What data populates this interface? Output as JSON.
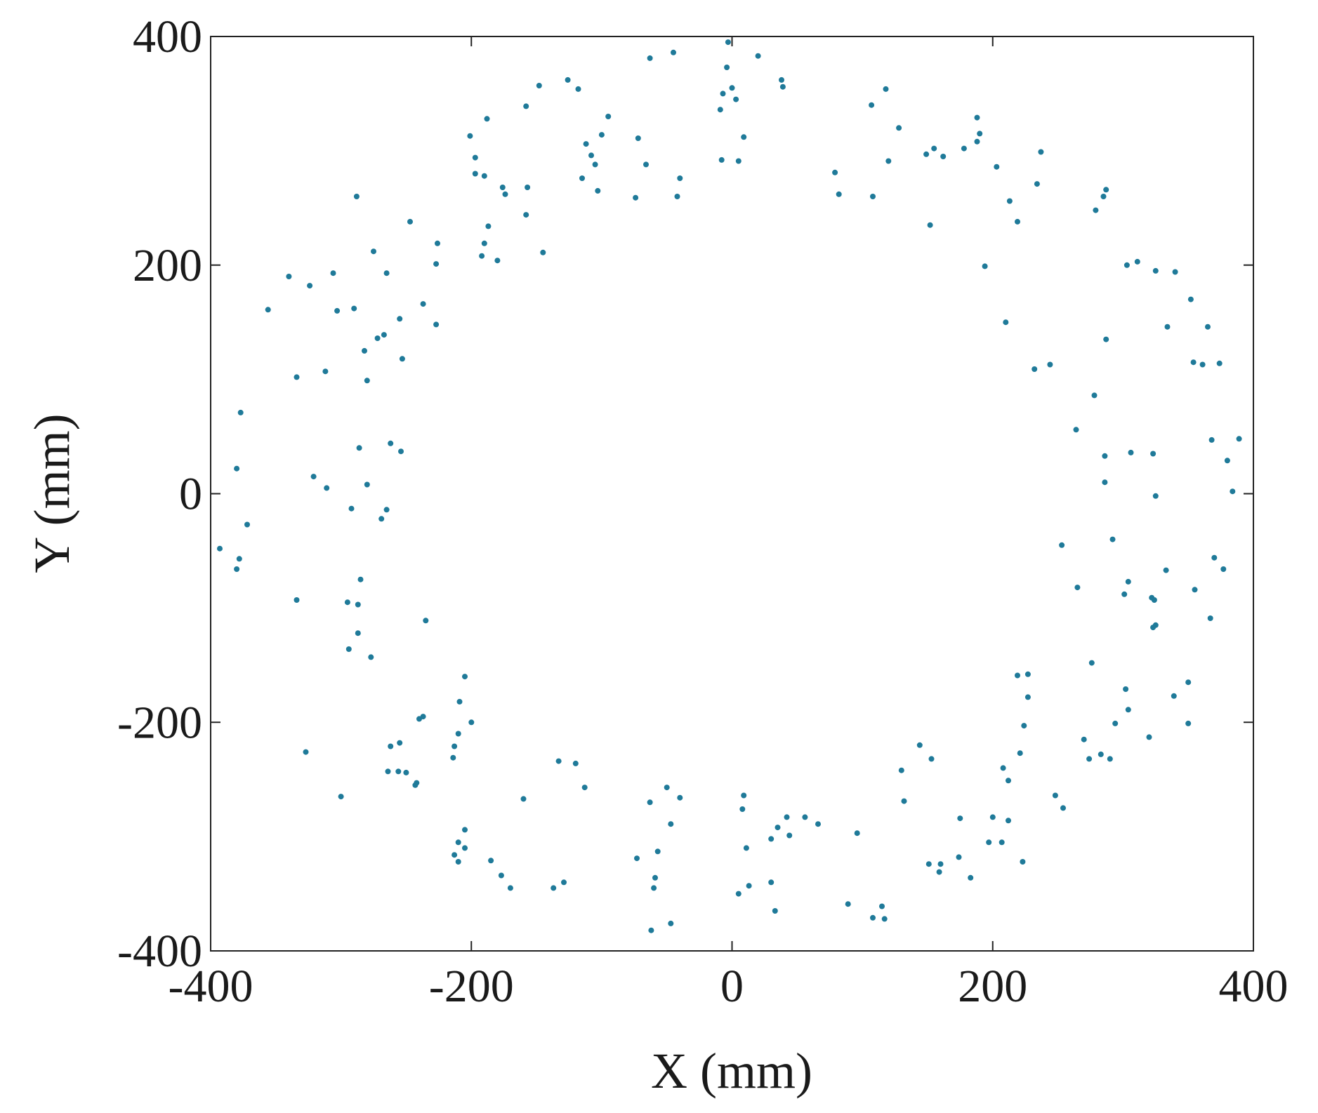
{
  "chart_data": {
    "type": "scatter",
    "title": "",
    "xlabel": "X (mm)",
    "ylabel": "Y (mm)",
    "xlim": [
      -400,
      400
    ],
    "ylim": [
      -400,
      400
    ],
    "xticks": [
      -400,
      -200,
      0,
      200,
      400
    ],
    "yticks": [
      -400,
      -200,
      0,
      200,
      400
    ],
    "xtick_labels": [
      "-400",
      "-200",
      "0",
      "200",
      "400"
    ],
    "ytick_labels": [
      "-400",
      "-200",
      "0",
      "200",
      "400"
    ],
    "grid": false,
    "marker_color": "#1f7a99",
    "series": [
      {
        "points": [
          [
            -3,
            395
          ],
          [
            20,
            383
          ],
          [
            38,
            362
          ],
          [
            39,
            356
          ],
          [
            -45,
            386
          ],
          [
            -63,
            381
          ],
          [
            -126,
            362
          ],
          [
            -118,
            354
          ],
          [
            -148,
            357
          ],
          [
            -158,
            339
          ],
          [
            -188,
            328
          ],
          [
            -201,
            313
          ],
          [
            -197,
            294
          ],
          [
            -190,
            278
          ],
          [
            -197,
            280
          ],
          [
            -176,
            268
          ],
          [
            -174,
            262
          ],
          [
            -157,
            268
          ],
          [
            -145,
            211
          ],
          [
            -158,
            244
          ],
          [
            -187,
            234
          ],
          [
            -190,
            219
          ],
          [
            -192,
            208
          ],
          [
            -180,
            204
          ],
          [
            -95,
            330
          ],
          [
            -100,
            314
          ],
          [
            -112,
            306
          ],
          [
            -108,
            296
          ],
          [
            -105,
            288
          ],
          [
            -115,
            276
          ],
          [
            -103,
            265
          ],
          [
            -72,
            311
          ],
          [
            -66,
            288
          ],
          [
            -74,
            259
          ],
          [
            -40,
            276
          ],
          [
            -42,
            260
          ],
          [
            -7,
            350
          ],
          [
            0,
            355
          ],
          [
            -4,
            373
          ],
          [
            3,
            345
          ],
          [
            -9,
            336
          ],
          [
            9,
            312
          ],
          [
            -8,
            292
          ],
          [
            5,
            291
          ],
          [
            107,
            340
          ],
          [
            118,
            354
          ],
          [
            128,
            320
          ],
          [
            120,
            291
          ],
          [
            155,
            302
          ],
          [
            149,
            297
          ],
          [
            162,
            295
          ],
          [
            178,
            302
          ],
          [
            188,
            329
          ],
          [
            190,
            315
          ],
          [
            188,
            308
          ],
          [
            203,
            286
          ],
          [
            237,
            299
          ],
          [
            213,
            256
          ],
          [
            234,
            271
          ],
          [
            219,
            238
          ],
          [
            152,
            235
          ],
          [
            194,
            199
          ],
          [
            79,
            281
          ],
          [
            82,
            262
          ],
          [
            108,
            260
          ],
          [
            287,
            266
          ],
          [
            285,
            260
          ],
          [
            279,
            248
          ],
          [
            303,
            200
          ],
          [
            311,
            203
          ],
          [
            325,
            195
          ],
          [
            340,
            194
          ],
          [
            352,
            170
          ],
          [
            365,
            146
          ],
          [
            334,
            146
          ],
          [
            287,
            135
          ],
          [
            210,
            150
          ],
          [
            232,
            109
          ],
          [
            244,
            113
          ],
          [
            354,
            115
          ],
          [
            361,
            113
          ],
          [
            374,
            114
          ],
          [
            278,
            86
          ],
          [
            264,
            56
          ],
          [
            286,
            33
          ],
          [
            306,
            36
          ],
          [
            323,
            35
          ],
          [
            368,
            47
          ],
          [
            389,
            48
          ],
          [
            380,
            29
          ],
          [
            384,
            2
          ],
          [
            286,
            10
          ],
          [
            325,
            -2
          ],
          [
            292,
            -40
          ],
          [
            253,
            -45
          ],
          [
            265,
            -82
          ],
          [
            304,
            -77
          ],
          [
            333,
            -67
          ],
          [
            301,
            -88
          ],
          [
            322,
            -91
          ],
          [
            324,
            -93
          ],
          [
            325,
            -115
          ],
          [
            323,
            -117
          ],
          [
            355,
            -84
          ],
          [
            370,
            -56
          ],
          [
            377,
            -66
          ],
          [
            367,
            -109
          ],
          [
            276,
            -148
          ],
          [
            219,
            -159
          ],
          [
            227,
            -158
          ],
          [
            227,
            -178
          ],
          [
            302,
            -171
          ],
          [
            339,
            -177
          ],
          [
            350,
            -165
          ],
          [
            304,
            -189
          ],
          [
            294,
            -201
          ],
          [
            320,
            -213
          ],
          [
            350,
            -201
          ],
          [
            270,
            -215
          ],
          [
            274,
            -232
          ],
          [
            290,
            -232
          ],
          [
            283,
            -228
          ],
          [
            224,
            -203
          ],
          [
            221,
            -227
          ],
          [
            208,
            -240
          ],
          [
            212,
            -251
          ],
          [
            248,
            -264
          ],
          [
            254,
            -275
          ],
          [
            200,
            -283
          ],
          [
            212,
            -286
          ],
          [
            175,
            -284
          ],
          [
            197,
            -305
          ],
          [
            207,
            -305
          ],
          [
            223,
            -322
          ],
          [
            183,
            -336
          ],
          [
            159,
            -331
          ],
          [
            160,
            -324
          ],
          [
            174,
            -318
          ],
          [
            151,
            -324
          ],
          [
            144,
            -220
          ],
          [
            153,
            -232
          ],
          [
            130,
            -242
          ],
          [
            132,
            -269
          ],
          [
            115,
            -361
          ],
          [
            117,
            -372
          ],
          [
            108,
            -371
          ],
          [
            89,
            -359
          ],
          [
            96,
            -297
          ],
          [
            66,
            -289
          ],
          [
            56,
            -283
          ],
          [
            42,
            -283
          ],
          [
            35,
            -292
          ],
          [
            30,
            -302
          ],
          [
            44,
            -299
          ],
          [
            30,
            -340
          ],
          [
            33,
            -365
          ],
          [
            9,
            -264
          ],
          [
            8,
            -276
          ],
          [
            11,
            -310
          ],
          [
            13,
            -343
          ],
          [
            5,
            -350
          ],
          [
            -50,
            -257
          ],
          [
            -40,
            -266
          ],
          [
            -63,
            -270
          ],
          [
            -47,
            -289
          ],
          [
            -57,
            -313
          ],
          [
            -73,
            -319
          ],
          [
            -59,
            -336
          ],
          [
            -60,
            -345
          ],
          [
            -47,
            -376
          ],
          [
            -62,
            -382
          ],
          [
            -133,
            -234
          ],
          [
            -120,
            -236
          ],
          [
            -113,
            -257
          ],
          [
            -160,
            -267
          ],
          [
            -129,
            -340
          ],
          [
            -137,
            -345
          ],
          [
            -170,
            -345
          ],
          [
            -177,
            -334
          ],
          [
            -185,
            -321
          ],
          [
            -205,
            -294
          ],
          [
            -205,
            -310
          ],
          [
            -213,
            -316
          ],
          [
            -210,
            -322
          ],
          [
            -210,
            -305
          ],
          [
            -205,
            -160
          ],
          [
            -209,
            -182
          ],
          [
            -200,
            -200
          ],
          [
            -210,
            -210
          ],
          [
            -213,
            -221
          ],
          [
            -214,
            -231
          ],
          [
            -237,
            -195
          ],
          [
            -240,
            -197
          ],
          [
            -235,
            -111
          ],
          [
            -255,
            -218
          ],
          [
            -256,
            -243
          ],
          [
            -250,
            -244
          ],
          [
            -242,
            -253
          ],
          [
            -243,
            -255
          ],
          [
            -262,
            -221
          ],
          [
            -264,
            -243
          ],
          [
            -277,
            -143
          ],
          [
            -287,
            -97
          ],
          [
            -285,
            -75
          ],
          [
            -295,
            -95
          ],
          [
            -287,
            -122
          ],
          [
            -294,
            -136
          ],
          [
            -300,
            -265
          ],
          [
            -327,
            -226
          ],
          [
            -334,
            -93
          ],
          [
            -372,
            -27
          ],
          [
            -378,
            -57
          ],
          [
            -380,
            -66
          ],
          [
            -393,
            -48
          ],
          [
            -292,
            -13
          ],
          [
            -311,
            5
          ],
          [
            -321,
            15
          ],
          [
            -377,
            71
          ],
          [
            -380,
            22
          ],
          [
            -286,
            40
          ],
          [
            -280,
            8
          ],
          [
            -269,
            -22
          ],
          [
            -265,
            -14
          ],
          [
            -262,
            44
          ],
          [
            -254,
            37
          ],
          [
            -288,
            260
          ],
          [
            -275,
            212
          ],
          [
            -265,
            193
          ],
          [
            -247,
            238
          ],
          [
            -255,
            153
          ],
          [
            -237,
            166
          ],
          [
            -227,
            148
          ],
          [
            -227,
            201
          ],
          [
            -226,
            219
          ],
          [
            -267,
            139
          ],
          [
            -272,
            136
          ],
          [
            -282,
            125
          ],
          [
            -280,
            99
          ],
          [
            -290,
            162
          ],
          [
            -303,
            160
          ],
          [
            -306,
            193
          ],
          [
            -324,
            182
          ],
          [
            -340,
            190
          ],
          [
            -356,
            161
          ],
          [
            -334,
            102
          ],
          [
            -312,
            107
          ],
          [
            -253,
            118
          ]
        ]
      }
    ]
  }
}
